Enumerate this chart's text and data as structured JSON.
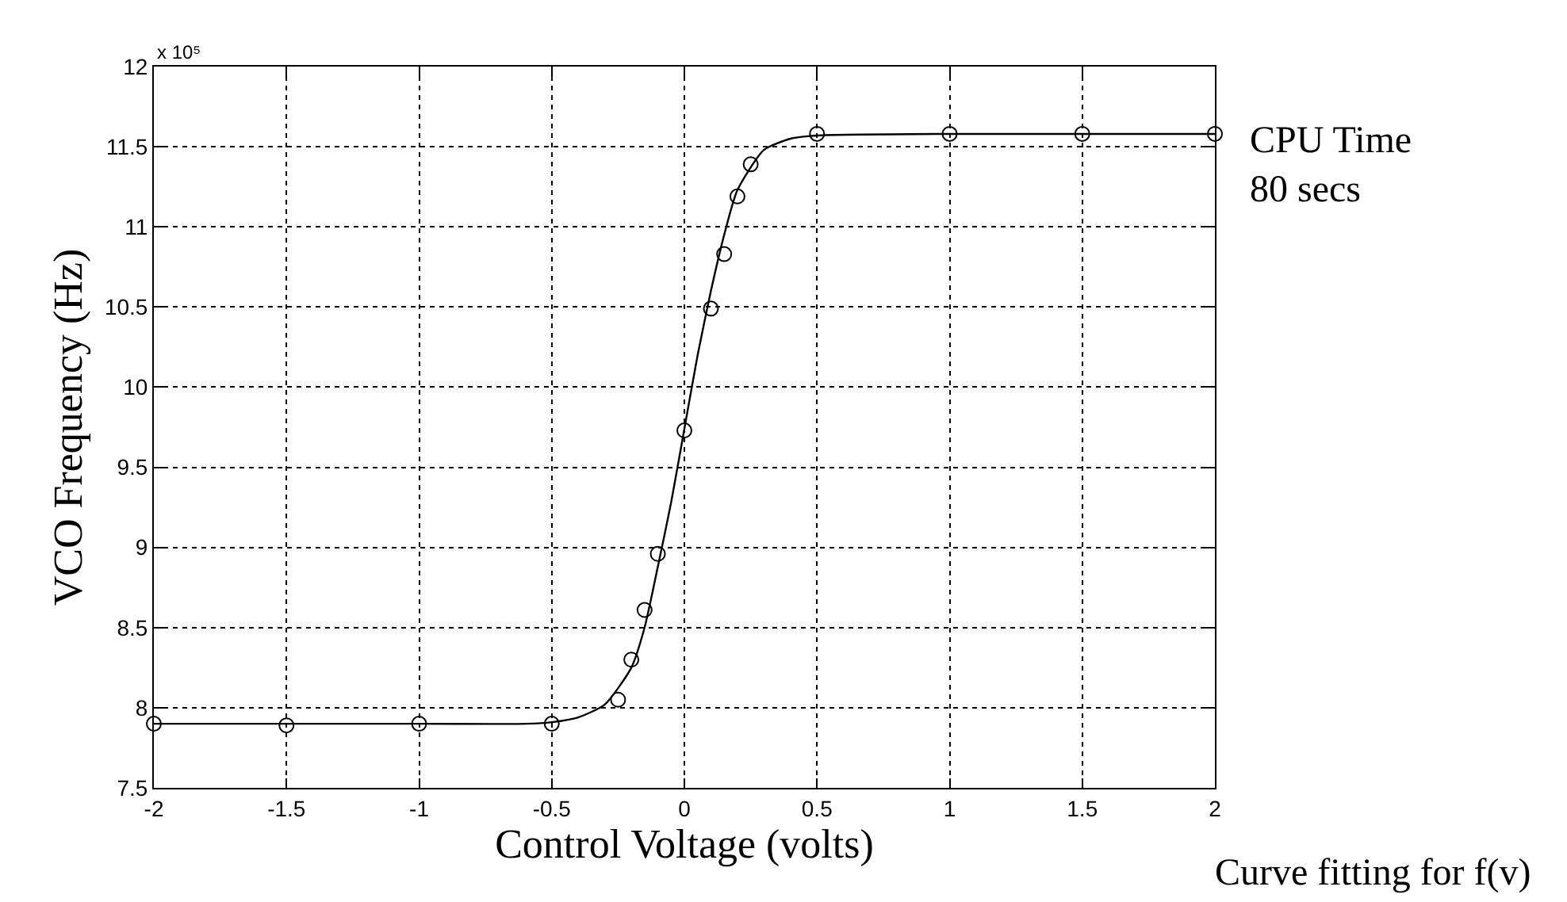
{
  "chart_data": {
    "type": "scatter",
    "xlabel": "Control Voltage (volts)",
    "ylabel": "VCO Frequency (Hz)",
    "xlim": [
      -2,
      2
    ],
    "xticks": [
      -2,
      -1.5,
      -1,
      -0.5,
      0,
      0.5,
      1,
      1.5,
      2
    ],
    "ylim": [
      7.5,
      12
    ],
    "yticks": [
      7.5,
      8,
      8.5,
      9,
      9.5,
      10,
      10.5,
      11,
      11.5,
      12
    ],
    "grid": true,
    "series": [
      {
        "color": "#000000",
        "marker": "circle",
        "x": [
          -2,
          -1.5,
          -1,
          -0.5,
          -0.25,
          -0.2,
          -0.15,
          -0.1,
          0,
          0.1,
          0.15,
          0.2,
          0.25,
          0.5,
          1,
          1.5,
          2
        ],
        "values": [
          7.9,
          7.89,
          7.9,
          7.9,
          8.05,
          8.3,
          8.61,
          8.96,
          9.73,
          10.49,
          10.83,
          11.19,
          11.39,
          11.58,
          11.58,
          11.58,
          11.58
        ]
      },
      {
        "type": "line",
        "color": "#000000",
        "line_style": "solid",
        "x": [
          -2,
          -1,
          -0.6,
          -0.5,
          -0.4,
          -0.3,
          -0.2,
          -0.15,
          -0.1,
          -0.05,
          0,
          0.05,
          0.1,
          0.15,
          0.2,
          0.3,
          0.4,
          0.5,
          1,
          2
        ],
        "values": [
          7.9,
          7.9,
          7.9,
          7.91,
          7.94,
          8.02,
          8.25,
          8.5,
          8.88,
          9.28,
          9.74,
          10.2,
          10.6,
          10.95,
          11.23,
          11.48,
          11.55,
          11.57,
          11.58,
          11.58
        ]
      }
    ],
    "annotations": [
      "x 10⁵",
      "CPU Time\n80 secs",
      "Curve fitting for f(v)"
    ]
  }
}
